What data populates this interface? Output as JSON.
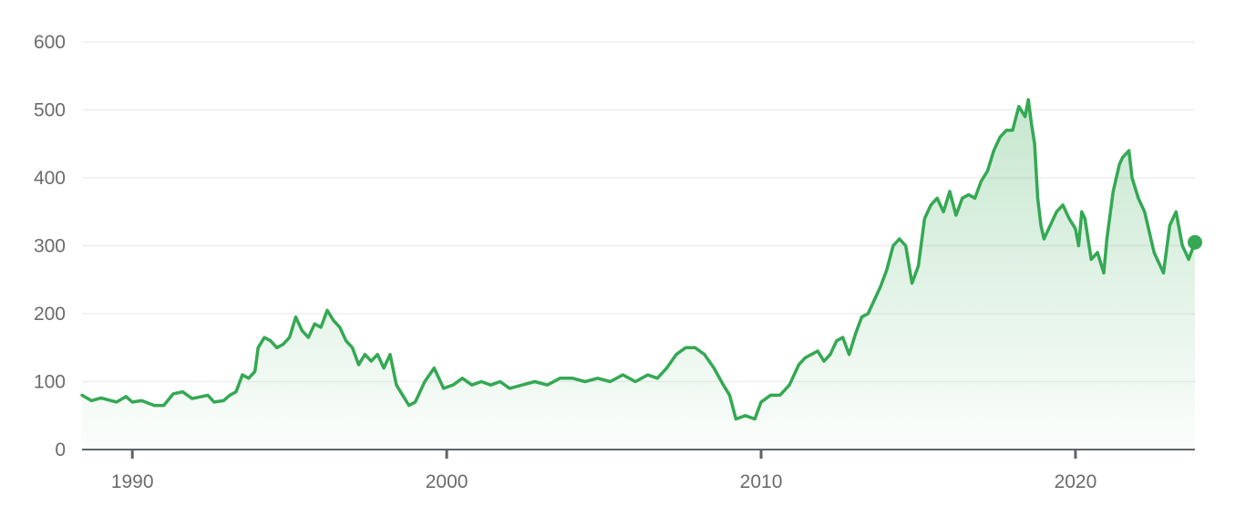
{
  "chart_data": {
    "type": "line",
    "title": "",
    "xlabel": "",
    "ylabel": "",
    "xlim": [
      1988.4,
      2023.8
    ],
    "ylim": [
      0,
      600
    ],
    "grid": true,
    "legend": "none",
    "y_ticks": [
      0,
      100,
      200,
      300,
      400,
      500,
      600
    ],
    "y_tick_labels": [
      "0",
      "100",
      "200",
      "300",
      "400",
      "500",
      "600"
    ],
    "x_ticks": [
      1990,
      2000,
      2010,
      2020
    ],
    "x_tick_labels": [
      "1990",
      "2000",
      "2010",
      "2020"
    ],
    "line_color": "#34a853",
    "fill_color": "#34a853",
    "series": [
      {
        "x": [
          1988.4,
          1988.7,
          1989.0,
          1989.5,
          1989.8,
          1990.0,
          1990.3,
          1990.7,
          1991.0,
          1991.3,
          1991.6,
          1991.9,
          1992.2,
          1992.4,
          1992.6,
          1992.9,
          1993.1,
          1993.3,
          1993.5,
          1993.7,
          1993.9,
          1994.0,
          1994.2,
          1994.4,
          1994.6,
          1994.8,
          1995.0,
          1995.2,
          1995.4,
          1995.6,
          1995.8,
          1996.0,
          1996.2,
          1996.4,
          1996.6,
          1996.8,
          1997.0,
          1997.2,
          1997.4,
          1997.6,
          1997.8,
          1998.0,
          1998.2,
          1998.4,
          1998.6,
          1998.8,
          1999.0,
          1999.3,
          1999.6,
          1999.9,
          2000.2,
          2000.5,
          2000.8,
          2001.1,
          2001.4,
          2001.7,
          2002.0,
          2002.4,
          2002.8,
          2003.2,
          2003.6,
          2004.0,
          2004.4,
          2004.8,
          2005.2,
          2005.6,
          2006.0,
          2006.4,
          2006.7,
          2007.0,
          2007.3,
          2007.6,
          2007.9,
          2008.2,
          2008.5,
          2008.8,
          2009.0,
          2009.2,
          2009.5,
          2009.8,
          2010.0,
          2010.3,
          2010.6,
          2010.9,
          2011.2,
          2011.4,
          2011.6,
          2011.8,
          2012.0,
          2012.2,
          2012.4,
          2012.6,
          2012.8,
          2013.0,
          2013.2,
          2013.4,
          2013.6,
          2013.8,
          2014.0,
          2014.2,
          2014.4,
          2014.6,
          2014.8,
          2015.0,
          2015.2,
          2015.4,
          2015.6,
          2015.8,
          2016.0,
          2016.2,
          2016.4,
          2016.6,
          2016.8,
          2017.0,
          2017.2,
          2017.4,
          2017.6,
          2017.8,
          2018.0,
          2018.2,
          2018.4,
          2018.5,
          2018.6,
          2018.7,
          2018.8,
          2018.9,
          2019.0,
          2019.2,
          2019.4,
          2019.6,
          2019.8,
          2020.0,
          2020.1,
          2020.2,
          2020.3,
          2020.5,
          2020.7,
          2020.9,
          2021.0,
          2021.2,
          2021.4,
          2021.5,
          2021.7,
          2021.8,
          2022.0,
          2022.2,
          2022.4,
          2022.5,
          2022.6,
          2022.8,
          2023.0,
          2023.2,
          2023.4,
          2023.5,
          2023.6,
          2023.8
        ],
        "y": [
          80,
          72,
          76,
          70,
          78,
          70,
          72,
          65,
          65,
          82,
          85,
          75,
          78,
          80,
          70,
          72,
          80,
          85,
          110,
          105,
          115,
          150,
          165,
          160,
          150,
          155,
          165,
          195,
          175,
          165,
          185,
          180,
          205,
          190,
          180,
          160,
          150,
          125,
          140,
          130,
          140,
          120,
          140,
          95,
          80,
          65,
          70,
          100,
          120,
          90,
          95,
          105,
          95,
          100,
          95,
          100,
          90,
          95,
          100,
          95,
          105,
          105,
          100,
          105,
          100,
          110,
          100,
          110,
          105,
          120,
          140,
          150,
          150,
          140,
          120,
          95,
          80,
          45,
          50,
          45,
          70,
          80,
          80,
          95,
          125,
          135,
          140,
          145,
          130,
          140,
          160,
          165,
          140,
          170,
          195,
          200,
          220,
          240,
          265,
          300,
          310,
          300,
          245,
          270,
          340,
          360,
          370,
          350,
          380,
          345,
          370,
          375,
          370,
          395,
          410,
          440,
          460,
          470,
          470,
          505,
          490,
          515,
          480,
          450,
          370,
          330,
          310,
          330,
          350,
          360,
          340,
          325,
          300,
          350,
          340,
          280,
          290,
          260,
          310,
          380,
          420,
          430,
          440,
          400,
          370,
          350,
          310,
          290,
          280,
          260,
          330,
          350,
          300,
          290,
          280,
          305
        ]
      }
    ]
  }
}
